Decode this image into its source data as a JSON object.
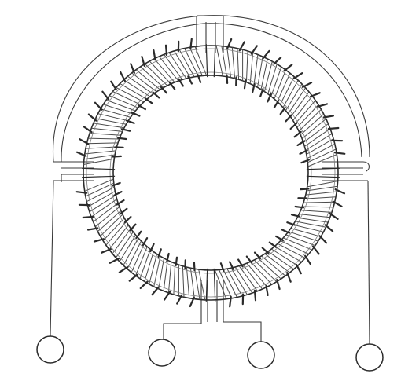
{
  "figure": {
    "ring_segments": 4,
    "terminals": 4,
    "ink_color": "#2b2b2b",
    "paper_color": "#ffffff",
    "coil_color": "#4a4a4a"
  }
}
